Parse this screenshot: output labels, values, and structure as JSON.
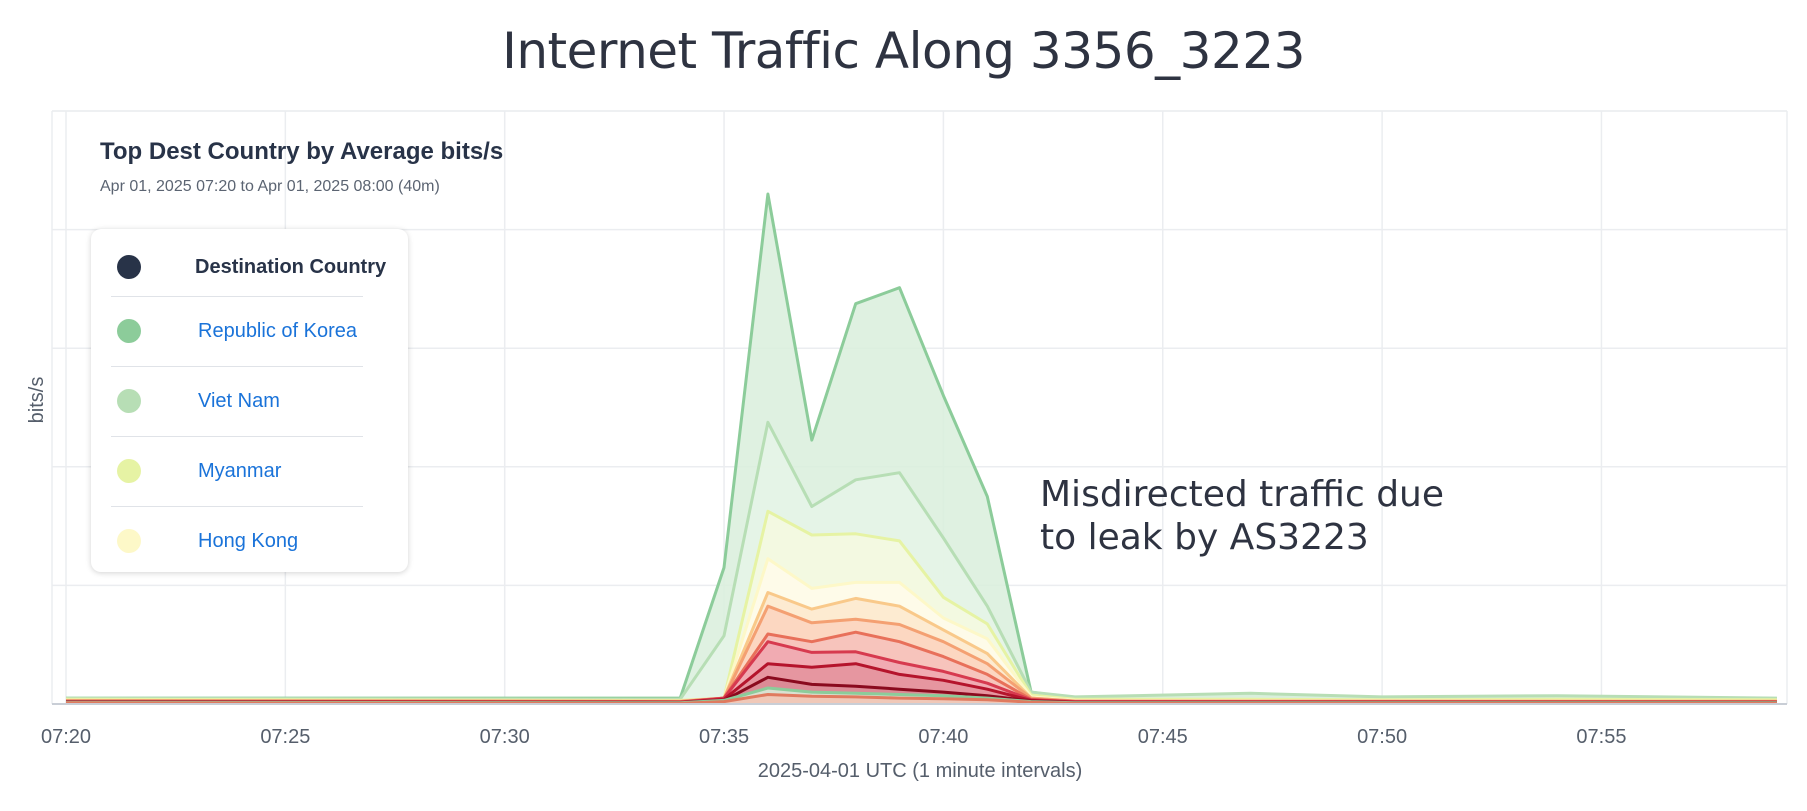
{
  "title": "Internet Traffic Along 3356_3223",
  "chart_data": {
    "type": "area",
    "subtitle": "Top Dest Country by Average bits/s",
    "time_range": "Apr 01, 2025 07:20 to Apr 01, 2025 08:00 (40m)",
    "xlabel": "2025-04-01 UTC (1 minute intervals)",
    "ylabel": "bits/s",
    "x_tick_labels": [
      "07:20",
      "07:25",
      "07:30",
      "07:35",
      "07:40",
      "07:45",
      "07:50",
      "07:55"
    ],
    "x_start_minute": 0,
    "x_end_minute": 39,
    "y_unit": "relative",
    "ylim": [
      0,
      1.0
    ],
    "y_grid_values": [
      0.2,
      0.4,
      0.6,
      0.8,
      1.0
    ],
    "grid": true,
    "legend": {
      "placement": "top-left",
      "header": "Destination Country",
      "header_color": "#283348",
      "entries": [
        {
          "name": "Republic of Korea",
          "color": "#8ccc9a"
        },
        {
          "name": "Viet Nam",
          "color": "#b7deb5"
        },
        {
          "name": "Myanmar",
          "color": "#e6f3a4"
        },
        {
          "name": "Hong Kong",
          "color": "#fdf8c8"
        }
      ]
    },
    "annotation": "Misdirected traffic due\nto leak by AS3223",
    "series": [
      {
        "color": "#8ccc9a",
        "fill": "#d9efdc",
        "points": [
          [
            0,
            0.01
          ],
          [
            14,
            0.01
          ],
          [
            15,
            0.23
          ],
          [
            16,
            0.86
          ],
          [
            17,
            0.445
          ],
          [
            18,
            0.675
          ],
          [
            19,
            0.702
          ],
          [
            20,
            0.52
          ],
          [
            21,
            0.35
          ],
          [
            22,
            0.02
          ],
          [
            23,
            0.01
          ],
          [
            27,
            0.013
          ],
          [
            30,
            0.01
          ],
          [
            34,
            0.011
          ],
          [
            39,
            0.009
          ]
        ]
      },
      {
        "color": "#b7deb5",
        "fill": "#e6f4e7",
        "points": [
          [
            0,
            0.01
          ],
          [
            14,
            0.008
          ],
          [
            15,
            0.115
          ],
          [
            16,
            0.475
          ],
          [
            17,
            0.333
          ],
          [
            18,
            0.378
          ],
          [
            19,
            0.39
          ],
          [
            20,
            0.28
          ],
          [
            21,
            0.165
          ],
          [
            22,
            0.02
          ],
          [
            23,
            0.012
          ],
          [
            27,
            0.018
          ],
          [
            30,
            0.012
          ],
          [
            34,
            0.014
          ],
          [
            39,
            0.01
          ]
        ]
      },
      {
        "color": "#e6f3a4",
        "fill": "#f6f9df",
        "points": [
          [
            0,
            0.008
          ],
          [
            14,
            0.006
          ],
          [
            15,
            0.01
          ],
          [
            16,
            0.325
          ],
          [
            17,
            0.285
          ],
          [
            18,
            0.287
          ],
          [
            19,
            0.275
          ],
          [
            20,
            0.18
          ],
          [
            21,
            0.135
          ],
          [
            22,
            0.015
          ],
          [
            23,
            0.008
          ],
          [
            27,
            0.008
          ],
          [
            30,
            0.007
          ],
          [
            34,
            0.008
          ],
          [
            39,
            0.007
          ]
        ]
      },
      {
        "color": "#fdf8c8",
        "fill": "#fffcea",
        "points": [
          [
            0,
            0.006
          ],
          [
            14,
            0.005
          ],
          [
            15,
            0.01
          ],
          [
            16,
            0.245
          ],
          [
            17,
            0.195
          ],
          [
            18,
            0.205
          ],
          [
            19,
            0.205
          ],
          [
            20,
            0.145
          ],
          [
            21,
            0.11
          ],
          [
            22,
            0.012
          ],
          [
            23,
            0.006
          ],
          [
            39,
            0.005
          ]
        ]
      },
      {
        "color": "#f9c98a",
        "fill": "#fde7cc",
        "points": [
          [
            0,
            0.006
          ],
          [
            14,
            0.005
          ],
          [
            15,
            0.01
          ],
          [
            16,
            0.188
          ],
          [
            17,
            0.16
          ],
          [
            18,
            0.178
          ],
          [
            19,
            0.165
          ],
          [
            20,
            0.125
          ],
          [
            21,
            0.085
          ],
          [
            22,
            0.01
          ],
          [
            23,
            0.005
          ],
          [
            39,
            0.005
          ]
        ]
      },
      {
        "color": "#f4a072",
        "fill": "#fbd3be",
        "points": [
          [
            0,
            0.005
          ],
          [
            14,
            0.004
          ],
          [
            15,
            0.01
          ],
          [
            16,
            0.165
          ],
          [
            17,
            0.137
          ],
          [
            18,
            0.143
          ],
          [
            19,
            0.134
          ],
          [
            20,
            0.105
          ],
          [
            21,
            0.068
          ],
          [
            22,
            0.01
          ],
          [
            23,
            0.005
          ],
          [
            39,
            0.004
          ]
        ]
      },
      {
        "color": "#e8705a",
        "fill": "#f6c1bb",
        "points": [
          [
            0,
            0.005
          ],
          [
            14,
            0.004
          ],
          [
            15,
            0.01
          ],
          [
            16,
            0.118
          ],
          [
            17,
            0.105
          ],
          [
            18,
            0.121
          ],
          [
            19,
            0.105
          ],
          [
            20,
            0.08
          ],
          [
            21,
            0.05
          ],
          [
            22,
            0.008
          ],
          [
            23,
            0.004
          ],
          [
            39,
            0.004
          ]
        ]
      },
      {
        "color": "#d73a4f",
        "fill": "#f0a7b0",
        "points": [
          [
            0,
            0.004
          ],
          [
            14,
            0.003
          ],
          [
            15,
            0.01
          ],
          [
            16,
            0.105
          ],
          [
            17,
            0.087
          ],
          [
            18,
            0.088
          ],
          [
            19,
            0.07
          ],
          [
            20,
            0.055
          ],
          [
            21,
            0.035
          ],
          [
            22,
            0.007
          ],
          [
            23,
            0.004
          ],
          [
            39,
            0.003
          ]
        ]
      },
      {
        "color": "#b5142c",
        "fill": "#e4929c",
        "points": [
          [
            0,
            0.004
          ],
          [
            14,
            0.003
          ],
          [
            15,
            0.008
          ],
          [
            16,
            0.068
          ],
          [
            17,
            0.062
          ],
          [
            18,
            0.068
          ],
          [
            19,
            0.05
          ],
          [
            20,
            0.04
          ],
          [
            21,
            0.025
          ],
          [
            22,
            0.006
          ],
          [
            23,
            0.003
          ],
          [
            39,
            0.003
          ]
        ]
      },
      {
        "color": "#8a0a1e",
        "fill": "#d98a94",
        "points": [
          [
            0,
            0.003
          ],
          [
            14,
            0.002
          ],
          [
            15,
            0.006
          ],
          [
            16,
            0.045
          ],
          [
            17,
            0.033
          ],
          [
            18,
            0.03
          ],
          [
            19,
            0.025
          ],
          [
            20,
            0.02
          ],
          [
            21,
            0.014
          ],
          [
            22,
            0.005
          ],
          [
            23,
            0.002
          ],
          [
            39,
            0.002
          ]
        ]
      },
      {
        "color": "#8ccc9a",
        "fill": "#d9efdc",
        "points": [
          [
            0,
            0.003
          ],
          [
            14,
            0.002
          ],
          [
            15,
            0.006
          ],
          [
            16,
            0.027
          ],
          [
            17,
            0.02
          ],
          [
            18,
            0.018
          ],
          [
            19,
            0.016
          ],
          [
            20,
            0.014
          ],
          [
            21,
            0.01
          ],
          [
            22,
            0.004
          ],
          [
            23,
            0.002
          ],
          [
            39,
            0.002
          ]
        ]
      },
      {
        "color": "#e07a5f",
        "fill": "#f3c3b4",
        "points": [
          [
            0,
            0.002
          ],
          [
            14,
            0.001
          ],
          [
            15,
            0.004
          ],
          [
            16,
            0.016
          ],
          [
            17,
            0.013
          ],
          [
            18,
            0.012
          ],
          [
            19,
            0.01
          ],
          [
            20,
            0.009
          ],
          [
            21,
            0.007
          ],
          [
            22,
            0.003
          ],
          [
            23,
            0.001
          ],
          [
            39,
            0.001
          ]
        ]
      }
    ]
  }
}
